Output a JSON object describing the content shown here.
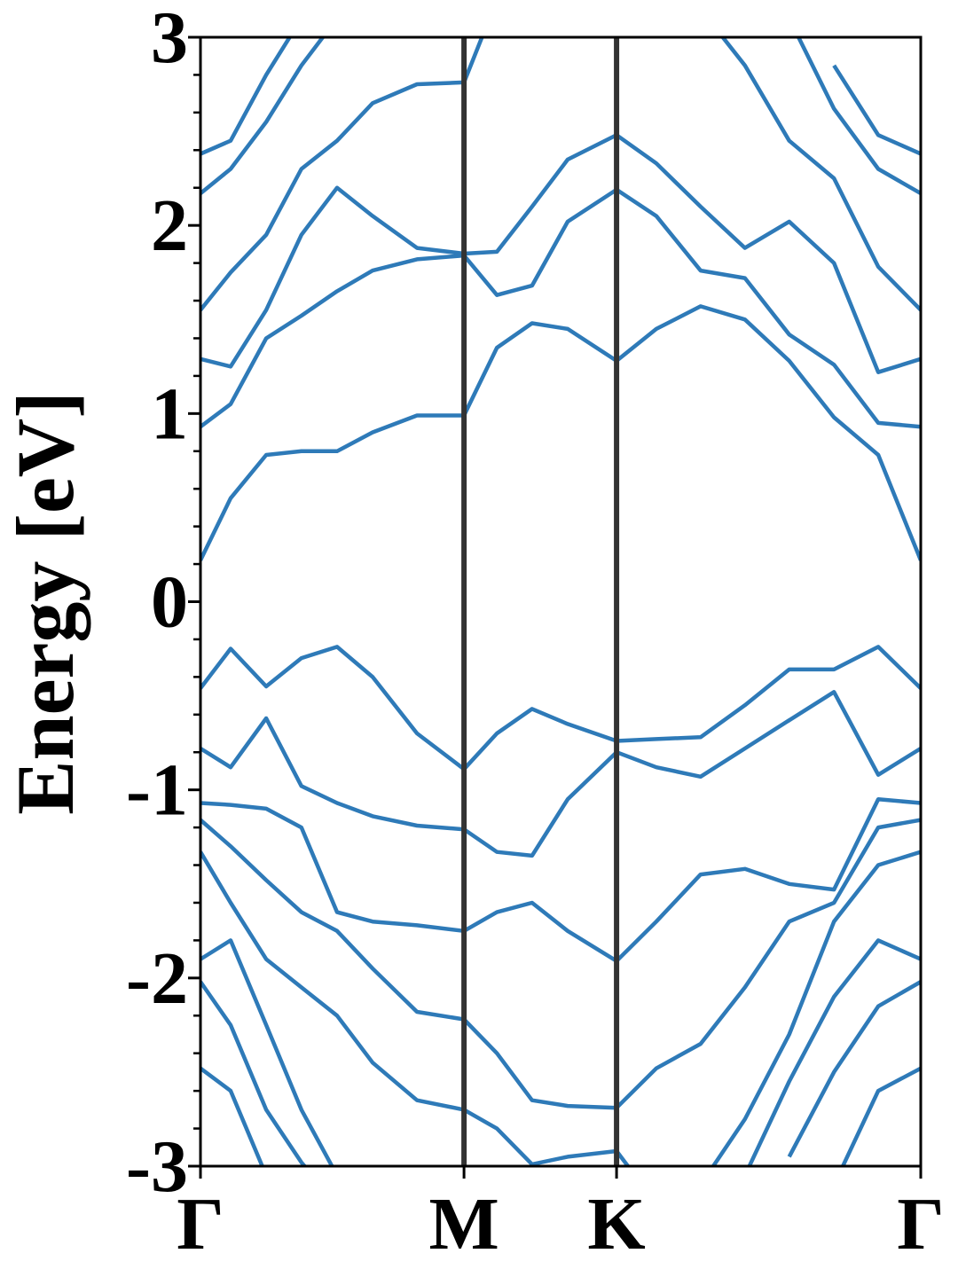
{
  "chart_data": {
    "type": "line",
    "ylabel": "Energy [eV]",
    "x": [
      0,
      0.066,
      0.144,
      0.221,
      0.299,
      0.377,
      0.474,
      0.577,
      0.649,
      0.726,
      0.804,
      0.911,
      0.998,
      1.095,
      1.192,
      1.289,
      1.387,
      1.484,
      1.577
    ],
    "xlim": [
      0,
      1.577
    ],
    "xticks": [
      {
        "value": 0,
        "label": "Γ"
      },
      {
        "value": 0.577,
        "label": "M"
      },
      {
        "value": 0.911,
        "label": "K"
      },
      {
        "value": 1.577,
        "label": "Γ"
      }
    ],
    "ylim": [
      -3,
      3
    ],
    "yticks": [
      -3,
      -2,
      -1,
      0,
      1,
      2,
      3
    ],
    "yminorticks": [
      -2.8,
      -2.6,
      -2.4,
      -2.2,
      -1.8,
      -1.6,
      -1.4,
      -1.2,
      -0.8,
      -0.6,
      -0.4,
      -0.2,
      0.2,
      0.4,
      0.6,
      0.8,
      1.2,
      1.4,
      1.6,
      1.8,
      2.2,
      2.4,
      2.6,
      2.8
    ],
    "color": "#2e7ab8",
    "vline_color": "#333333",
    "series": [
      {
        "values": [
          0.22,
          0.55,
          0.78,
          0.8,
          0.8,
          0.9,
          0.99,
          0.99,
          1.35,
          1.48,
          1.45,
          1.28,
          1.45,
          1.57,
          1.5,
          1.28,
          0.98,
          0.78,
          0.22
        ]
      },
      {
        "values": [
          0.93,
          1.05,
          1.4,
          1.52,
          1.65,
          1.76,
          1.82,
          1.84,
          1.63,
          1.68,
          2.02,
          2.19,
          2.05,
          1.76,
          1.72,
          1.42,
          1.26,
          0.95,
          0.93
        ]
      },
      {
        "values": [
          1.29,
          1.25,
          1.55,
          1.95,
          2.2,
          2.05,
          1.88,
          1.85,
          1.86,
          2.1,
          2.35,
          2.48,
          2.33,
          2.1,
          1.88,
          2.02,
          1.8,
          1.22,
          1.29
        ]
      },
      {
        "values": [
          1.55,
          1.75,
          1.95,
          2.3,
          2.45,
          2.65,
          2.75,
          2.76,
          3.2,
          null,
          null,
          null,
          null,
          3.15,
          2.85,
          2.45,
          2.25,
          1.78,
          1.55
        ]
      },
      {
        "values": [
          2.17,
          2.3,
          2.55,
          2.85,
          3.1,
          null,
          null,
          null,
          null,
          null,
          null,
          null,
          null,
          null,
          null,
          3.1,
          2.62,
          2.3,
          2.17
        ]
      },
      {
        "values": [
          2.38,
          2.45,
          2.8,
          3.1,
          null,
          null,
          null,
          null,
          null,
          null,
          null,
          null,
          null,
          null,
          null,
          null,
          2.85,
          2.48,
          2.38
        ]
      },
      {
        "values": [
          -0.46,
          -0.25,
          -0.45,
          -0.3,
          -0.24,
          -0.4,
          -0.7,
          -0.89,
          -0.7,
          -0.57,
          -0.65,
          -0.74,
          -0.73,
          -0.72,
          -0.55,
          -0.36,
          -0.36,
          -0.24,
          -0.46
        ]
      },
      {
        "values": [
          -0.78,
          -0.88,
          -0.62,
          -0.98,
          -1.07,
          -1.14,
          -1.19,
          -1.21,
          -1.33,
          -1.35,
          -1.05,
          -0.8,
          -0.88,
          -0.93,
          -0.78,
          -0.63,
          -0.48,
          -0.92,
          -0.78
        ]
      },
      {
        "values": [
          -1.07,
          -1.08,
          -1.1,
          -1.2,
          -1.65,
          -1.7,
          -1.72,
          -1.75,
          -1.65,
          -1.6,
          -1.75,
          -1.91,
          -1.7,
          -1.45,
          -1.42,
          -1.5,
          -1.53,
          -1.05,
          -1.07
        ]
      },
      {
        "values": [
          -1.16,
          -1.3,
          -1.48,
          -1.65,
          -1.75,
          -1.95,
          -2.18,
          -2.22,
          -2.4,
          -2.65,
          -2.68,
          -2.69,
          -2.48,
          -2.35,
          -2.05,
          -1.7,
          -1.6,
          -1.2,
          -1.16
        ]
      },
      {
        "values": [
          -1.33,
          -1.6,
          -1.9,
          -2.05,
          -2.2,
          -2.45,
          -2.65,
          -2.7,
          -2.8,
          -2.99,
          -2.95,
          -2.92,
          -3.2,
          -3.1,
          -2.75,
          -2.3,
          -1.7,
          -1.4,
          -1.33
        ]
      },
      {
        "values": [
          -1.9,
          -1.8,
          -2.25,
          -2.7,
          -3.05,
          null,
          null,
          null,
          null,
          null,
          null,
          null,
          null,
          null,
          -3.05,
          -2.55,
          -2.1,
          -1.8,
          -1.9
        ]
      },
      {
        "values": [
          -2.02,
          -2.25,
          -2.7,
          -2.98,
          -3.2,
          null,
          null,
          null,
          null,
          null,
          null,
          null,
          null,
          null,
          null,
          -2.95,
          -2.5,
          -2.15,
          -2.02
        ]
      },
      {
        "values": [
          -2.48,
          -2.6,
          -3.05,
          null,
          null,
          null,
          null,
          null,
          null,
          null,
          null,
          null,
          null,
          null,
          null,
          null,
          -3.1,
          -2.6,
          -2.48
        ]
      }
    ]
  }
}
